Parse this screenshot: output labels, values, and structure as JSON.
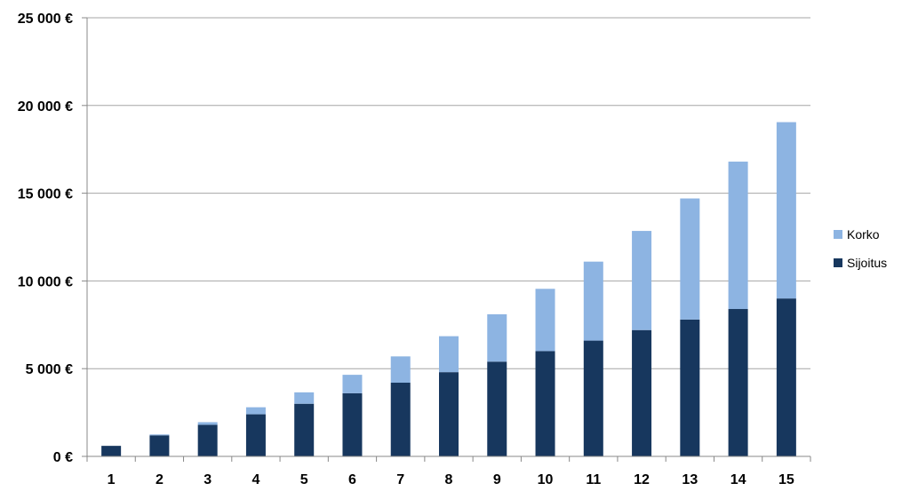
{
  "chart_data": {
    "type": "bar",
    "stacked": true,
    "categories": [
      "1",
      "2",
      "3",
      "4",
      "5",
      "6",
      "7",
      "8",
      "9",
      "10",
      "11",
      "12",
      "13",
      "14",
      "15"
    ],
    "series": [
      {
        "name": "Sijoitus",
        "color": "#17375e",
        "values": [
          600,
          1200,
          1800,
          2400,
          3000,
          3600,
          4200,
          4800,
          5400,
          6000,
          6600,
          7200,
          7800,
          8400,
          9000
        ]
      },
      {
        "name": "Korko",
        "color": "#8db4e2",
        "values": [
          0,
          50,
          150,
          400,
          650,
          1050,
          1500,
          2050,
          2700,
          3550,
          4500,
          5650,
          6900,
          8400,
          10050
        ]
      }
    ],
    "y_ticks": [
      "0 €",
      "5 000 €",
      "10 000 €",
      "15 000 €",
      "20 000 €",
      "25 000 €"
    ],
    "ylim": [
      0,
      25000
    ],
    "y_step": 5000,
    "grid": true,
    "legend_position": "right",
    "legend_order": [
      "Korko",
      "Sijoitus"
    ]
  }
}
